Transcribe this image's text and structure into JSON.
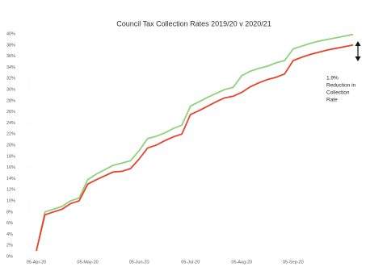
{
  "chart_data": {
    "type": "line",
    "title": "Council Tax Collection Rates 2019/20 v 2020/21",
    "categories": [
      "05-Apr-20",
      null,
      null,
      null,
      null,
      null,
      "05-May-20",
      null,
      null,
      null,
      null,
      null,
      "05-Jun-20",
      null,
      null,
      null,
      null,
      null,
      "05-Jul-20",
      null,
      null,
      null,
      null,
      null,
      "05-Aug-20",
      null,
      null,
      null,
      null,
      null,
      "05-Sep-20",
      null,
      null,
      null,
      null,
      null,
      null,
      null
    ],
    "series": [
      {
        "color": "#8fd17a",
        "values": [
          1,
          8,
          8.5,
          9,
          10,
          10.5,
          13.8,
          14.8,
          15.6,
          16.4,
          16.8,
          17.2,
          19,
          21.2,
          21.6,
          22.2,
          23,
          23.6,
          27,
          27.8,
          28.6,
          29.3,
          30,
          30.4,
          32.5,
          33.3,
          33.8,
          34.2,
          34.8,
          35.2,
          37.3,
          37.8,
          38.3,
          38.7,
          39,
          39.3,
          39.6,
          39.9
        ]
      },
      {
        "color": "#e8412c",
        "values": [
          1,
          7.5,
          8,
          8.5,
          9.5,
          10,
          13,
          13.8,
          14.5,
          15.2,
          15.3,
          15.8,
          17.5,
          19.5,
          20,
          20.8,
          21.5,
          22,
          25.5,
          26.2,
          27,
          27.8,
          28.5,
          28.8,
          29.5,
          30.5,
          31.2,
          31.8,
          32.2,
          32.8,
          35.2,
          35.8,
          36.3,
          36.7,
          37.1,
          37.4,
          37.7,
          38
        ]
      }
    ],
    "ylim": [
      0,
      40
    ],
    "yticks": [
      {
        "value": 0,
        "label": "0%"
      },
      {
        "value": 2,
        "label": "2%"
      },
      {
        "value": 4,
        "label": "4%"
      },
      {
        "value": 6,
        "label": "6%"
      },
      {
        "value": 8,
        "label": "8%"
      },
      {
        "value": 10,
        "label": "10%"
      },
      {
        "value": 12,
        "label": "12%"
      },
      {
        "value": 14,
        "label": "14%"
      },
      {
        "value": 16,
        "label": "16%"
      },
      {
        "value": 18,
        "label": "18%"
      },
      {
        "value": 20,
        "label": "20%"
      },
      {
        "value": 22,
        "label": "22%"
      },
      {
        "value": 24,
        "label": "24%"
      },
      {
        "value": 26,
        "label": "26%"
      },
      {
        "value": 28,
        "label": "28%"
      },
      {
        "value": 30,
        "label": "30%"
      },
      {
        "value": 32,
        "label": "32%"
      },
      {
        "value": 34,
        "label": "34%"
      },
      {
        "value": 36,
        "label": "36%"
      },
      {
        "value": 38,
        "label": "38%"
      },
      {
        "value": 40,
        "label": "40%"
      }
    ],
    "annotation": [
      "1.9%",
      "Reduction in",
      "Collection",
      "Rate"
    ]
  }
}
